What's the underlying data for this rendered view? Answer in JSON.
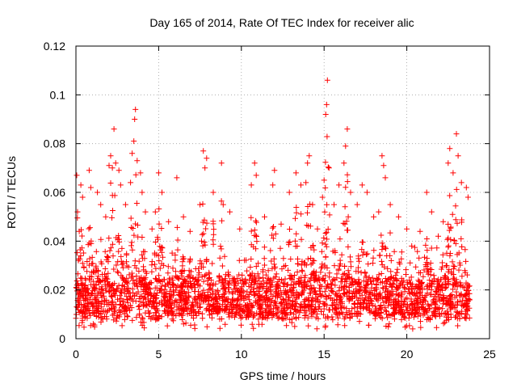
{
  "chart_data": {
    "type": "scatter",
    "title": "Day 165 of 2014, Rate Of TEC Index for receiver alic",
    "xlabel": "GPS time / hours",
    "ylabel": "ROTI / TECUs",
    "xlim": [
      0,
      25
    ],
    "ylim": [
      0,
      0.12
    ],
    "xticks": [
      0,
      5,
      10,
      15,
      20,
      25
    ],
    "yticks": [
      0,
      0.02,
      0.04,
      0.06,
      0.08,
      0.1,
      0.12
    ],
    "x_tick_labels": [
      "0",
      "5",
      "10",
      "15",
      "20",
      "25"
    ],
    "y_tick_labels": [
      "0",
      "0.02",
      "0.04",
      "0.06",
      "0.08",
      "0.1",
      "0.12"
    ],
    "grid": true,
    "legend": "none",
    "marker": "+",
    "color": "#ff0000",
    "x_data_range": [
      0,
      23.8
    ],
    "dense_band": [
      0.008,
      0.025
    ],
    "series": [
      {
        "name": "ROTI",
        "points": [
          [
            0.05,
            0.067
          ],
          [
            0.1,
            0.052
          ],
          [
            0.2,
            0.044
          ],
          [
            0.3,
            0.063
          ],
          [
            0.4,
            0.058
          ],
          [
            0.8,
            0.069
          ],
          [
            0.9,
            0.062
          ],
          [
            1.3,
            0.06
          ],
          [
            1.5,
            0.055
          ],
          [
            1.8,
            0.05
          ],
          [
            2.0,
            0.071
          ],
          [
            2.1,
            0.075
          ],
          [
            2.2,
            0.07
          ],
          [
            2.3,
            0.086
          ],
          [
            2.4,
            0.072
          ],
          [
            2.6,
            0.069
          ],
          [
            2.7,
            0.063
          ],
          [
            3.0,
            0.055
          ],
          [
            3.3,
            0.064
          ],
          [
            3.4,
            0.076
          ],
          [
            3.5,
            0.081
          ],
          [
            3.55,
            0.09
          ],
          [
            3.6,
            0.094
          ],
          [
            3.7,
            0.073
          ],
          [
            3.9,
            0.068
          ],
          [
            4.0,
            0.06
          ],
          [
            4.2,
            0.052
          ],
          [
            4.6,
            0.045
          ],
          [
            4.8,
            0.052
          ],
          [
            5.0,
            0.068
          ],
          [
            5.2,
            0.06
          ],
          [
            5.6,
            0.048
          ],
          [
            6.1,
            0.066
          ],
          [
            6.5,
            0.05
          ],
          [
            6.9,
            0.044
          ],
          [
            7.5,
            0.055
          ],
          [
            7.7,
            0.077
          ],
          [
            7.8,
            0.07
          ],
          [
            7.9,
            0.074
          ],
          [
            8.3,
            0.06
          ],
          [
            8.8,
            0.072
          ],
          [
            8.9,
            0.055
          ],
          [
            9.3,
            0.052
          ],
          [
            9.9,
            0.045
          ],
          [
            10.6,
            0.063
          ],
          [
            10.8,
            0.072
          ],
          [
            10.9,
            0.067
          ],
          [
            11.4,
            0.05
          ],
          [
            11.9,
            0.063
          ],
          [
            12.0,
            0.069
          ],
          [
            12.4,
            0.047
          ],
          [
            12.9,
            0.06
          ],
          [
            13.3,
            0.068
          ],
          [
            13.6,
            0.063
          ],
          [
            13.9,
            0.064
          ],
          [
            14.0,
            0.072
          ],
          [
            14.1,
            0.075
          ],
          [
            14.3,
            0.055
          ],
          [
            14.6,
            0.045
          ],
          [
            14.9,
            0.058
          ],
          [
            15.0,
            0.065
          ],
          [
            15.1,
            0.092
          ],
          [
            15.15,
            0.096
          ],
          [
            15.2,
            0.106
          ],
          [
            15.3,
            0.07
          ],
          [
            15.6,
            0.055
          ],
          [
            15.9,
            0.063
          ],
          [
            16.2,
            0.072
          ],
          [
            16.3,
            0.079
          ],
          [
            16.4,
            0.086
          ],
          [
            16.6,
            0.06
          ],
          [
            17.0,
            0.055
          ],
          [
            17.3,
            0.063
          ],
          [
            17.6,
            0.06
          ],
          [
            18.0,
            0.05
          ],
          [
            18.3,
            0.052
          ],
          [
            18.5,
            0.075
          ],
          [
            18.6,
            0.071
          ],
          [
            18.7,
            0.066
          ],
          [
            19.0,
            0.055
          ],
          [
            19.5,
            0.05
          ],
          [
            20.0,
            0.045
          ],
          [
            20.3,
            0.038
          ],
          [
            20.8,
            0.044
          ],
          [
            21.2,
            0.06
          ],
          [
            21.5,
            0.052
          ],
          [
            21.9,
            0.042
          ],
          [
            22.2,
            0.048
          ],
          [
            22.5,
            0.072
          ],
          [
            22.6,
            0.078
          ],
          [
            22.8,
            0.068
          ],
          [
            23.0,
            0.084
          ],
          [
            23.1,
            0.075
          ],
          [
            23.3,
            0.064
          ],
          [
            23.6,
            0.062
          ],
          [
            23.7,
            0.058
          ]
        ]
      }
    ]
  }
}
